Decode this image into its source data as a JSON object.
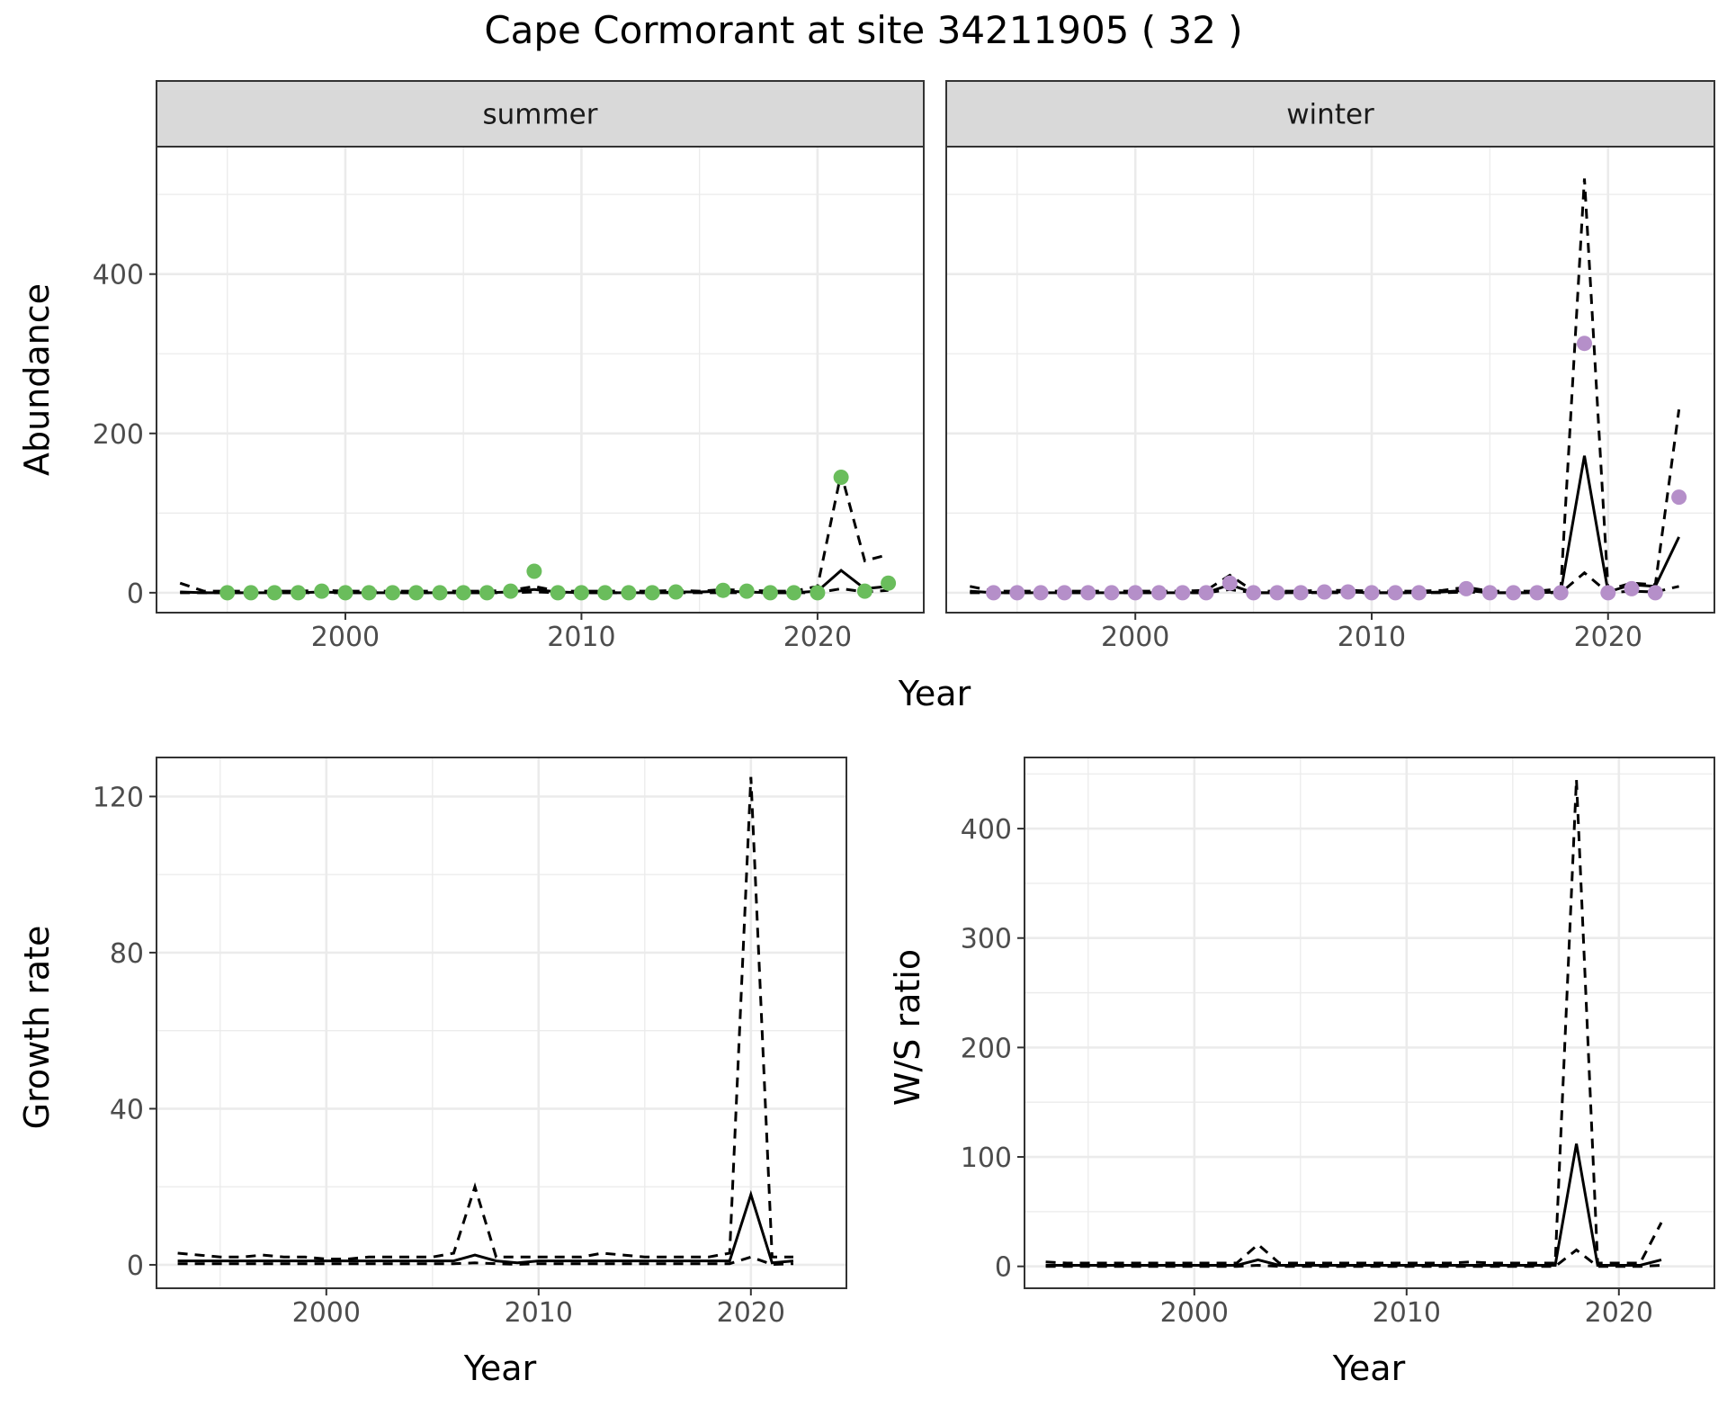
{
  "figure": {
    "title": "Cape Cormorant at site 34211905 ( 32 )"
  },
  "colors": {
    "summer_points": "#6abd5c",
    "winter_points": "#b58fc9",
    "lines": "#000000",
    "strip_fill": "#d9d9d9",
    "grid": "#ebebeb",
    "tick_text": "#4d4d4d"
  },
  "chart_data": [
    {
      "type": "line",
      "panel": "abundance",
      "ylabel": "Abundance",
      "xlabel": "Year",
      "ylim": [
        -25,
        560
      ],
      "yticks": [
        0,
        200,
        400
      ],
      "xlim": [
        1992,
        2024.5
      ],
      "xticks": [
        2000,
        2010,
        2020
      ],
      "grid": true,
      "facets": [
        {
          "strip": "summer",
          "x": [
            1993,
            1994,
            1995,
            1996,
            1997,
            1998,
            1999,
            2000,
            2001,
            2002,
            2003,
            2004,
            2005,
            2006,
            2007,
            2008,
            2009,
            2010,
            2011,
            2012,
            2013,
            2014,
            2015,
            2016,
            2017,
            2018,
            2019,
            2020,
            2021,
            2022,
            2023
          ],
          "observed": [
            null,
            null,
            0,
            0,
            0,
            0,
            2,
            0,
            0,
            0,
            0,
            0,
            0,
            0,
            2,
            27,
            0,
            0,
            0,
            0,
            0,
            1,
            null,
            3,
            2,
            0,
            0,
            0,
            145,
            2,
            12
          ],
          "fitted": [
            1,
            0,
            0,
            0,
            0,
            0,
            1,
            0,
            0,
            0,
            0,
            0,
            0,
            0,
            1,
            4,
            1,
            0,
            0,
            0,
            0,
            1,
            1,
            2,
            1,
            0,
            0,
            2,
            28,
            5,
            8
          ],
          "lower": [
            0,
            0,
            0,
            0,
            0,
            0,
            0,
            0,
            0,
            0,
            0,
            0,
            0,
            0,
            0,
            1,
            0,
            0,
            0,
            0,
            0,
            0,
            0,
            0,
            0,
            0,
            0,
            0,
            5,
            1,
            3
          ],
          "upper": [
            12,
            2,
            2,
            2,
            2,
            2,
            3,
            2,
            2,
            2,
            2,
            2,
            2,
            2,
            3,
            8,
            2,
            2,
            2,
            2,
            2,
            3,
            2,
            4,
            3,
            2,
            2,
            8,
            150,
            40,
            48
          ]
        },
        {
          "strip": "winter",
          "x": [
            1993,
            1994,
            1995,
            1996,
            1997,
            1998,
            1999,
            2000,
            2001,
            2002,
            2003,
            2004,
            2005,
            2006,
            2007,
            2008,
            2009,
            2010,
            2011,
            2012,
            2013,
            2014,
            2015,
            2016,
            2017,
            2018,
            2019,
            2020,
            2021,
            2022,
            2023
          ],
          "observed": [
            null,
            0,
            0,
            0,
            0,
            0,
            0,
            0,
            0,
            0,
            0,
            12,
            0,
            0,
            0,
            1,
            1,
            0,
            0,
            0,
            null,
            5,
            0,
            0,
            0,
            0,
            313,
            0,
            5,
            0,
            120
          ],
          "fitted": [
            2,
            0,
            0,
            0,
            0,
            0,
            0,
            0,
            0,
            0,
            0,
            10,
            0,
            0,
            0,
            1,
            1,
            0,
            0,
            0,
            1,
            3,
            0,
            0,
            0,
            1,
            172,
            1,
            10,
            8,
            70
          ],
          "lower": [
            0,
            0,
            0,
            0,
            0,
            0,
            0,
            0,
            0,
            0,
            0,
            4,
            0,
            0,
            0,
            0,
            0,
            0,
            0,
            0,
            0,
            1,
            0,
            0,
            0,
            0,
            25,
            0,
            2,
            1,
            8
          ],
          "upper": [
            8,
            2,
            2,
            2,
            2,
            2,
            2,
            2,
            2,
            2,
            3,
            22,
            2,
            2,
            2,
            3,
            3,
            2,
            2,
            2,
            3,
            7,
            2,
            2,
            2,
            5,
            520,
            4,
            12,
            10,
            230
          ]
        }
      ]
    },
    {
      "type": "line",
      "panel": "growth",
      "ylabel": "Growth rate",
      "xlabel": "Year",
      "ylim": [
        -6,
        130
      ],
      "yticks": [
        0,
        40,
        80,
        120
      ],
      "xlim": [
        1992,
        2024.5
      ],
      "xticks": [
        2000,
        2010,
        2020
      ],
      "grid": true,
      "x": [
        1993,
        1994,
        1995,
        1996,
        1997,
        1998,
        1999,
        2000,
        2001,
        2002,
        2003,
        2004,
        2005,
        2006,
        2007,
        2008,
        2009,
        2010,
        2011,
        2012,
        2013,
        2014,
        2015,
        2016,
        2017,
        2018,
        2019,
        2020,
        2021,
        2022
      ],
      "fitted": [
        1,
        1,
        1,
        1,
        1,
        1,
        1,
        1,
        1,
        1,
        1,
        1,
        1,
        1,
        2.5,
        1,
        0.5,
        1,
        1,
        1,
        1,
        1,
        1,
        1,
        1,
        1,
        1,
        18,
        0.5,
        1
      ],
      "lower": [
        0.3,
        0.3,
        0.3,
        0.3,
        0.3,
        0.3,
        0.3,
        0.3,
        0.3,
        0.3,
        0.3,
        0.3,
        0.3,
        0.3,
        0.5,
        0.3,
        0.1,
        0.3,
        0.3,
        0.3,
        0.3,
        0.3,
        0.3,
        0.3,
        0.3,
        0.3,
        0.3,
        2,
        0.1,
        0.3
      ],
      "upper": [
        3,
        2.5,
        2,
        2,
        2.5,
        2,
        2,
        1.5,
        1.5,
        2,
        2,
        2,
        2,
        3,
        20,
        2,
        2,
        2,
        2,
        2,
        3,
        2.5,
        2,
        2,
        2,
        2,
        3,
        125,
        2,
        2
      ]
    },
    {
      "type": "line",
      "panel": "ratio",
      "ylabel": "W/S ratio",
      "xlabel": "Year",
      "ylim": [
        -20,
        465
      ],
      "yticks": [
        0,
        100,
        200,
        300,
        400
      ],
      "xlim": [
        1992,
        2024.5
      ],
      "xticks": [
        2000,
        2010,
        2020
      ],
      "grid": true,
      "x": [
        1993,
        1994,
        1995,
        1996,
        1997,
        1998,
        1999,
        2000,
        2001,
        2002,
        2003,
        2004,
        2005,
        2006,
        2007,
        2008,
        2009,
        2010,
        2011,
        2012,
        2013,
        2014,
        2015,
        2016,
        2017,
        2018,
        2019,
        2020,
        2021,
        2022
      ],
      "fitted": [
        1,
        1,
        1,
        1,
        1,
        1,
        1,
        1,
        1,
        1,
        6,
        1,
        1,
        1,
        1,
        1,
        1,
        1,
        1,
        1,
        1,
        1,
        1,
        1,
        1,
        112,
        1,
        1,
        1,
        6
      ],
      "lower": [
        0,
        0,
        0,
        0,
        0,
        0,
        0,
        0,
        0,
        0,
        1,
        0,
        0,
        0,
        0,
        0,
        0,
        0,
        0,
        0,
        0,
        0,
        0,
        0,
        0,
        15,
        0,
        0,
        0,
        1
      ],
      "upper": [
        4,
        3,
        3,
        3,
        3,
        3,
        3,
        3,
        3,
        3,
        20,
        3,
        3,
        3,
        3,
        3,
        3,
        3,
        3,
        3,
        4,
        3,
        3,
        3,
        3,
        445,
        3,
        3,
        3,
        40
      ]
    }
  ]
}
